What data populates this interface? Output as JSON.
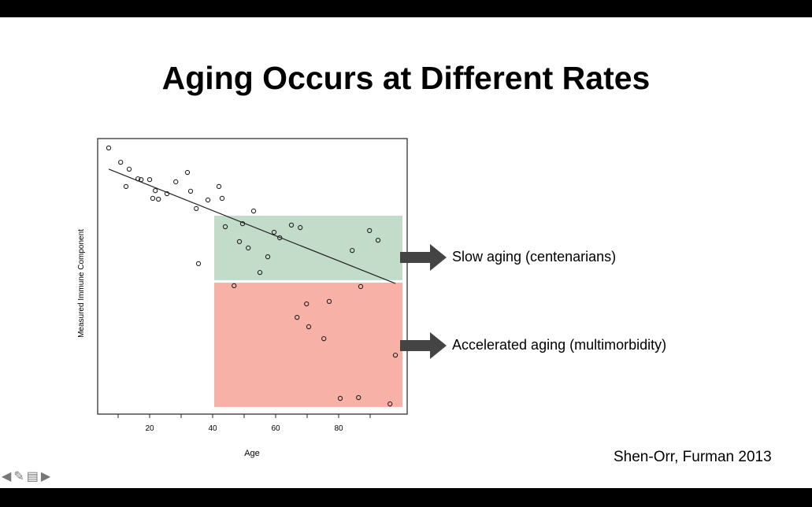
{
  "slide": {
    "title": "Aging Occurs at Different Rates",
    "annotations": [
      "Slow aging (centenarians)",
      "Accelerated aging (multimorbidity)"
    ],
    "citation": "Shen-Orr, Furman 2013",
    "nav_icons": [
      "arrow-left-icon",
      "pencil-icon",
      "menu-icon",
      "arrow-right-icon"
    ]
  },
  "chart_data": {
    "type": "scatter",
    "title": "",
    "xlabel": "Age",
    "ylabel": "Measured Immune Component",
    "xlim": [
      3.5,
      101.75
    ],
    "ylim": [
      0,
      100
    ],
    "xticks": [
      10,
      20,
      30,
      40,
      50,
      60,
      70,
      80,
      90
    ],
    "xtick_labels": {
      "20": "20",
      "40": "40",
      "60": "60",
      "80": "80"
    },
    "grid": false,
    "points": [
      [
        7,
        96.6
      ],
      [
        10.8,
        91.4
      ],
      [
        13.5,
        88.9
      ],
      [
        12.5,
        82.6
      ],
      [
        16.3,
        85.4
      ],
      [
        17.3,
        85.1
      ],
      [
        20,
        85.1
      ],
      [
        21.8,
        81.1
      ],
      [
        21,
        78.3
      ],
      [
        22.8,
        78
      ],
      [
        25.5,
        80
      ],
      [
        28.3,
        84.3
      ],
      [
        32,
        87.7
      ],
      [
        33,
        80.9
      ],
      [
        34.8,
        74.6
      ],
      [
        38.5,
        77.7
      ],
      [
        42,
        82.6
      ],
      [
        43,
        78.3
      ],
      [
        35.5,
        54.6
      ],
      [
        53,
        73.7
      ],
      [
        44,
        68
      ],
      [
        49.5,
        69.1
      ],
      [
        48.5,
        62.6
      ],
      [
        51.3,
        60.3
      ],
      [
        55,
        51.4
      ],
      [
        57.5,
        57.1
      ],
      [
        59.5,
        66
      ],
      [
        61.3,
        64
      ],
      [
        65,
        68.6
      ],
      [
        67.8,
        67.7
      ],
      [
        89.8,
        66.6
      ],
      [
        92.5,
        63.1
      ],
      [
        84.3,
        59.4
      ],
      [
        46.8,
        46.6
      ],
      [
        87,
        46.3
      ],
      [
        69.8,
        40
      ],
      [
        77,
        40.9
      ],
      [
        66.8,
        35.1
      ],
      [
        70.5,
        31.7
      ],
      [
        75.3,
        27.4
      ],
      [
        98,
        21.4
      ],
      [
        80.5,
        5.7
      ],
      [
        86.3,
        6
      ],
      [
        96.3,
        3.7
      ]
    ],
    "trend_line": [
      [
        7,
        88.9
      ],
      [
        98,
        47.4
      ]
    ],
    "regions": [
      {
        "name": "slow-aging",
        "x": [
          40.5,
          100.25
        ],
        "y": [
          48.6,
          72
        ],
        "color": "#c3dbc9"
      },
      {
        "name": "accelerated-aging",
        "x": [
          40.5,
          100.25
        ],
        "y": [
          2.6,
          47.7
        ],
        "color": "#f7b1a6"
      }
    ]
  }
}
